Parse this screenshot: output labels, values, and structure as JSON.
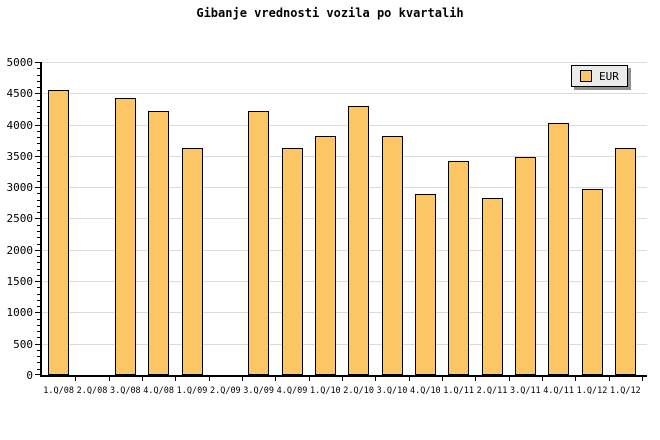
{
  "chart_data": {
    "type": "bar",
    "title": "Gibanje vrednosti vozila po kvartalih",
    "categories": [
      "1.Q/08",
      "2.Q/08",
      "3.Q/08",
      "4.Q/08",
      "1.Q/09",
      "2.Q/09",
      "3.Q/09",
      "4.Q/09",
      "1.Q/10",
      "2.Q/10",
      "3.Q/10",
      "4.Q/10",
      "1.Q/11",
      "2.Q/11",
      "3.Q/11",
      "4.Q/11",
      "1.Q/12",
      "1.Q/12"
    ],
    "series": [
      {
        "name": "EUR",
        "values": [
          4550,
          null,
          4420,
          4220,
          3630,
          null,
          4220,
          3630,
          3810,
          4300,
          3810,
          2890,
          3420,
          2820,
          3490,
          4020,
          2970,
          3630
        ]
      }
    ],
    "xlabel": "",
    "ylabel": "",
    "ylim": [
      0,
      5000
    ],
    "ytick_step": 500,
    "y_minor_tick_step": 100,
    "ytick_labels": [
      "0",
      "500",
      "1000",
      "1500",
      "2000",
      "2500",
      "3000",
      "3500",
      "4000",
      "4500",
      "5000"
    ],
    "grid": true,
    "legend": {
      "label": "EUR",
      "position": "top-right"
    },
    "colors": {
      "bar_fill": "#FDC665",
      "bar_border": "#000000",
      "grid_line": "#DCDCDC",
      "axis": "#000000",
      "legend_bg": "#EBEBEB",
      "legend_shadow": "#909090",
      "text": "#000000",
      "background": "#FFFFFF"
    }
  }
}
